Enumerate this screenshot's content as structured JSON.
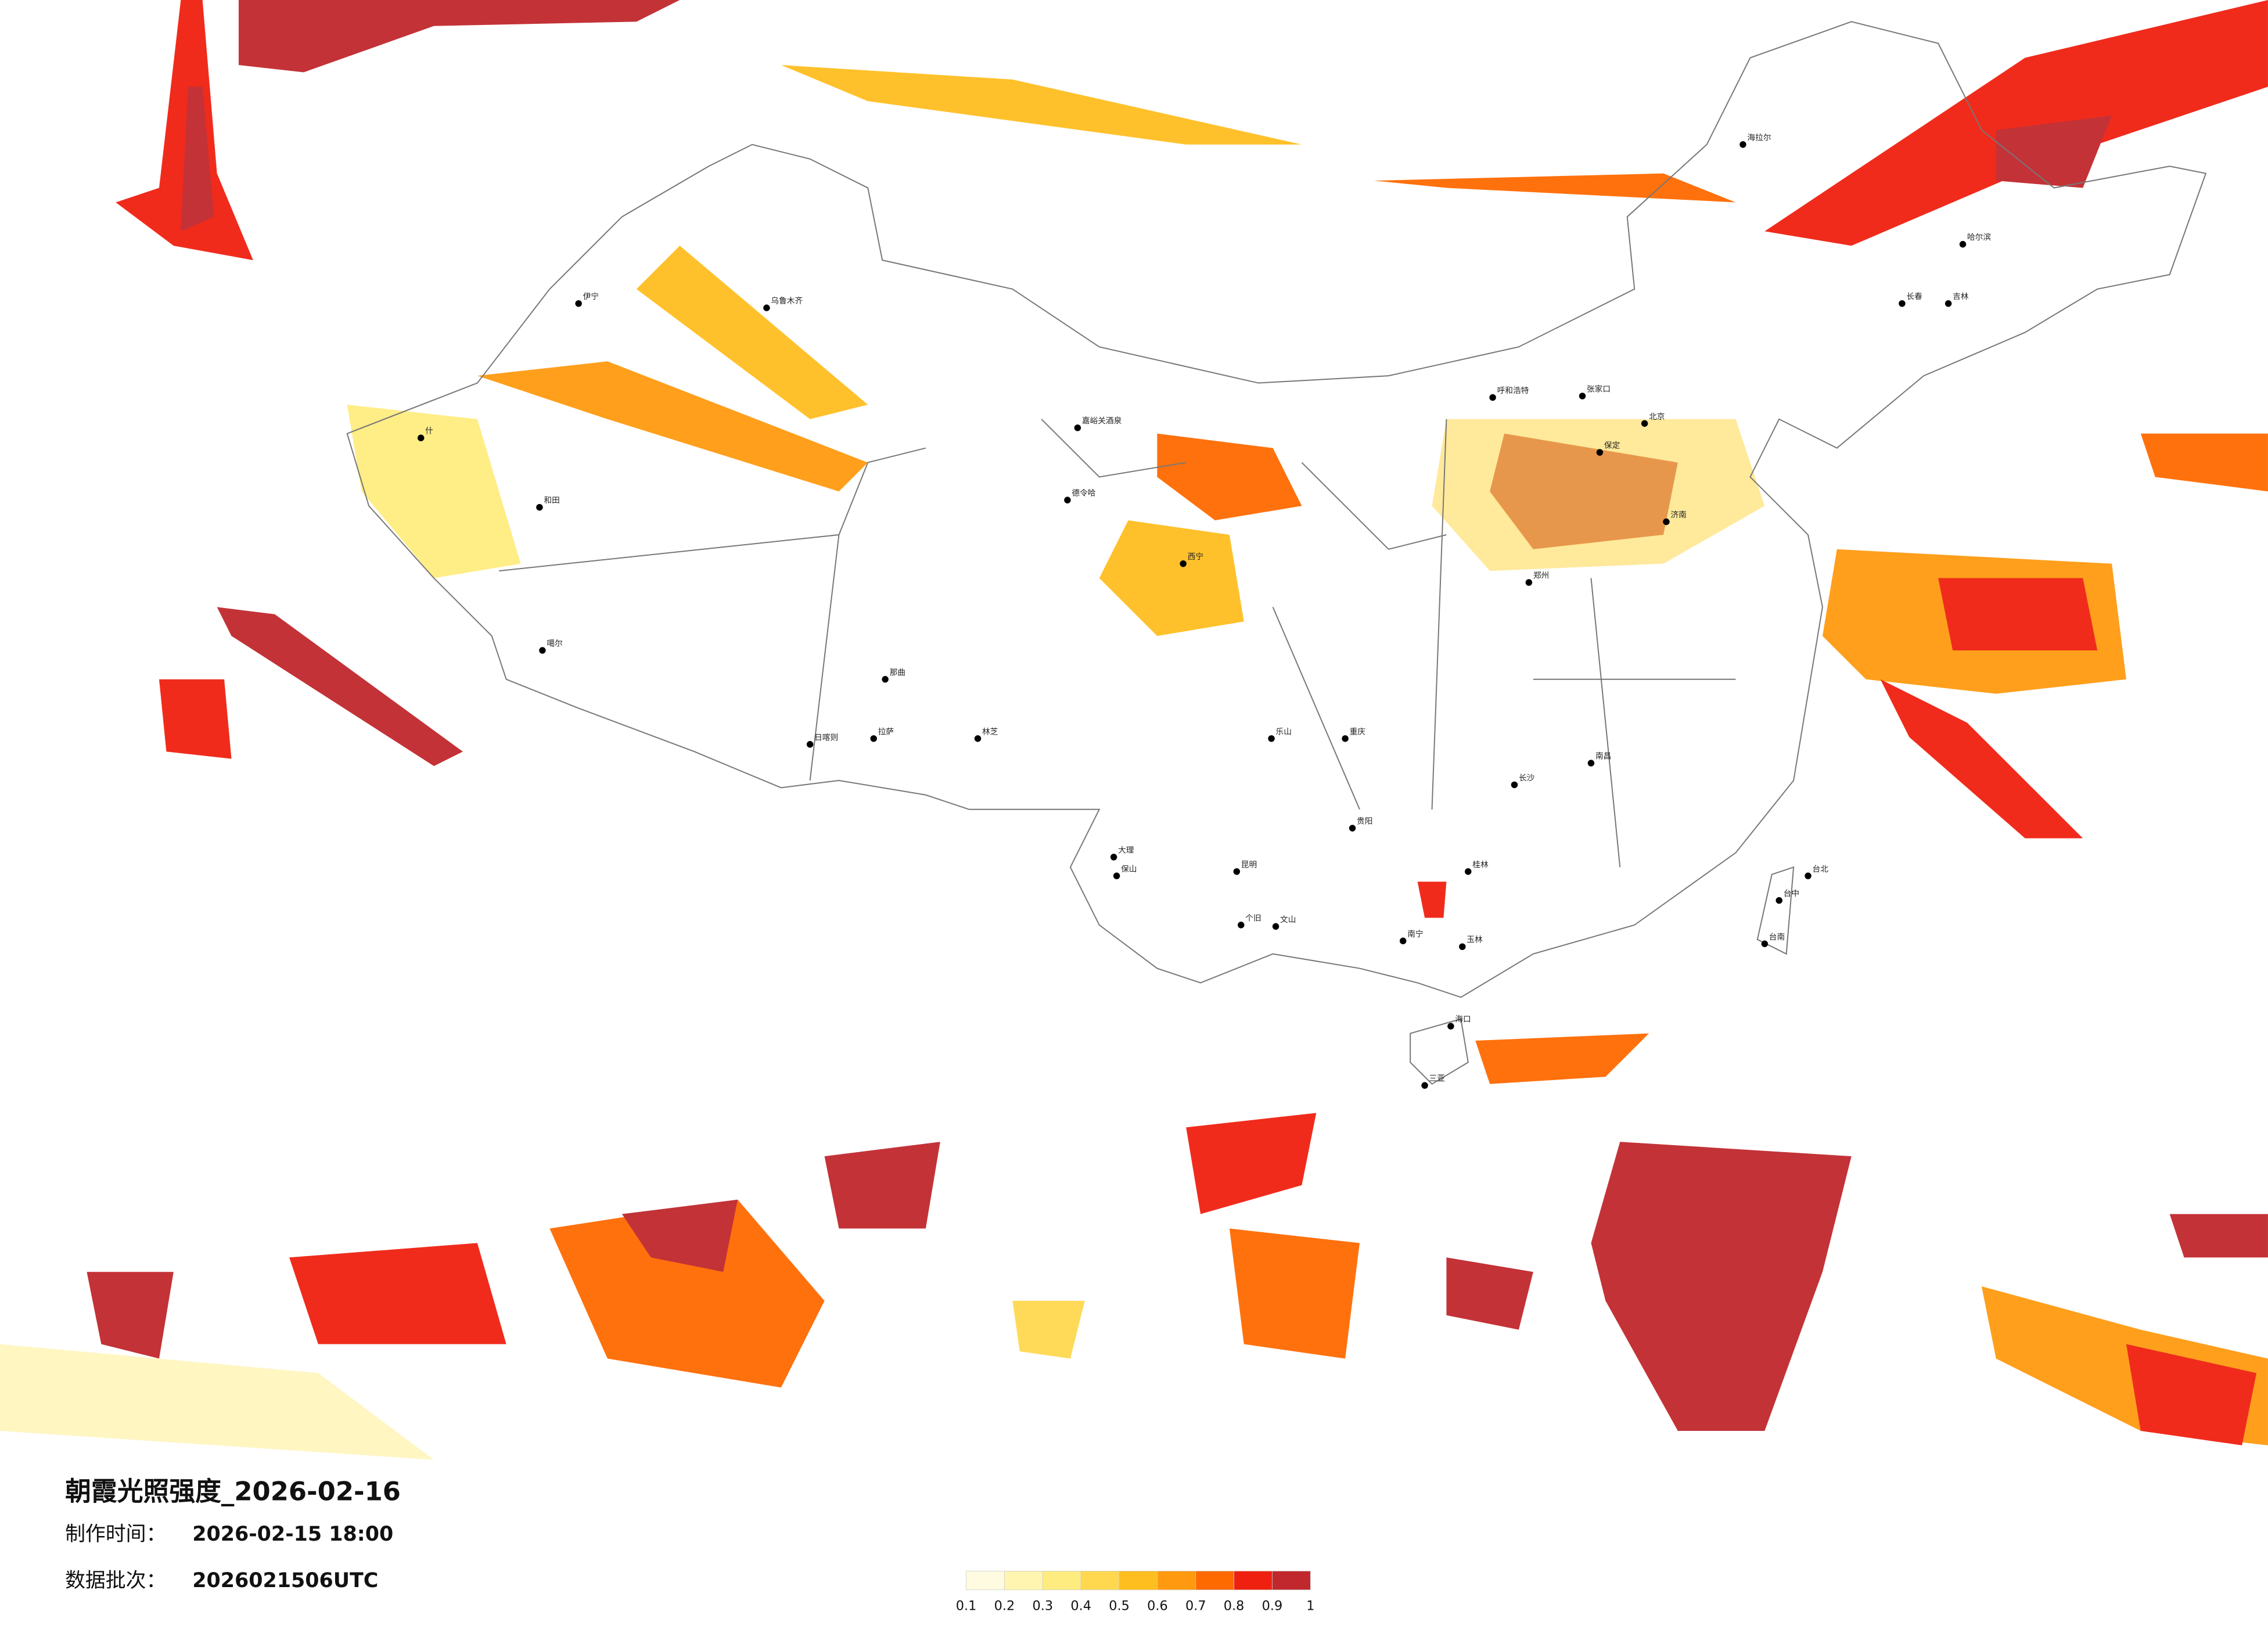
{
  "title": "朝霞光照强度_2026-02-16",
  "made_label": "制作时间：",
  "made_time": "2026-02-15 18:00",
  "batch_label": "数据批次：",
  "batch": "2026021506UTC",
  "colorbar": {
    "ticks": [
      0.1,
      0.2,
      0.3,
      0.4,
      0.5,
      0.6,
      0.7,
      0.8,
      0.9,
      1
    ],
    "colors": [
      "#fffbe0",
      "#fff5b0",
      "#ffec80",
      "#ffd850",
      "#ffbe20",
      "#ff9a10",
      "#ff6a00",
      "#f02010",
      "#c0282d"
    ]
  },
  "cities": [
    "海拉尔",
    "哈尔滨",
    "长春",
    "吉林",
    "呼和浩特",
    "张家口",
    "北京",
    "保定",
    "济南",
    "郑州",
    "西宁",
    "乌鲁木齐",
    "伊宁",
    "和田",
    "什",
    "噶尔",
    "日喀则",
    "拉萨",
    "林芝",
    "那曲",
    "嘉峪关酒泉",
    "德令哈",
    "乐山",
    "重庆",
    "贵阳",
    "昆明",
    "南宁",
    "海口",
    "三亚",
    "台北",
    "台中",
    "台南",
    "长沙",
    "南昌",
    "大理",
    "保山",
    "个旧",
    "文山",
    "玉林",
    "桂林"
  ]
}
